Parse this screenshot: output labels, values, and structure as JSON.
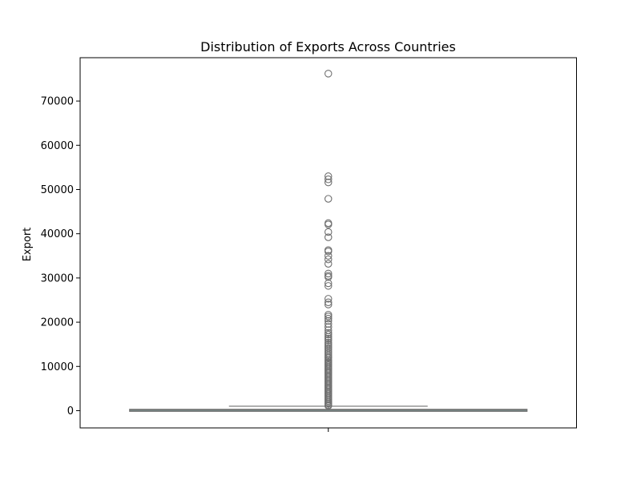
{
  "chart_data": {
    "type": "box",
    "title": "Distribution of Exports Across Countries",
    "xlabel": "",
    "ylabel": "Export",
    "ylim": [
      -3900,
      79800
    ],
    "yticks": [
      0,
      10000,
      20000,
      30000,
      40000,
      50000,
      60000,
      70000
    ],
    "ytick_labels": [
      "0",
      "10000",
      "20000",
      "30000",
      "40000",
      "50000",
      "60000",
      "70000"
    ],
    "grid": false,
    "legend": "none",
    "box": {
      "q1": 0,
      "median": 100,
      "q3": 300,
      "whisker_low": 0,
      "whisker_high": 1000,
      "fill": "#8ecdc7",
      "line_color": "#707070"
    },
    "outliers": [
      76200,
      53000,
      52300,
      51600,
      47900,
      42400,
      42100,
      40400,
      39200,
      36300,
      36000,
      35000,
      34200,
      33200,
      31000,
      30500,
      30200,
      28800,
      28200,
      25300,
      24500,
      24000,
      21700,
      21300,
      20800,
      20300,
      19600,
      18900,
      18200,
      17600,
      17200,
      16700,
      16300,
      15900,
      15400,
      15000,
      14600,
      14200,
      13800,
      13400,
      13000,
      12600,
      12200,
      11900,
      11500,
      11200,
      10900,
      10600,
      10300,
      10000,
      9700,
      9400,
      9100,
      8800,
      8500,
      8200,
      7900,
      7600,
      7300,
      7000,
      6700,
      6400,
      6100,
      5800,
      5500,
      5200,
      4900,
      4600,
      4300,
      4000,
      3700,
      3400,
      3100,
      2800,
      2500,
      2200,
      1900,
      1600,
      1300,
      1100
    ],
    "outlier_color": "#707070"
  }
}
